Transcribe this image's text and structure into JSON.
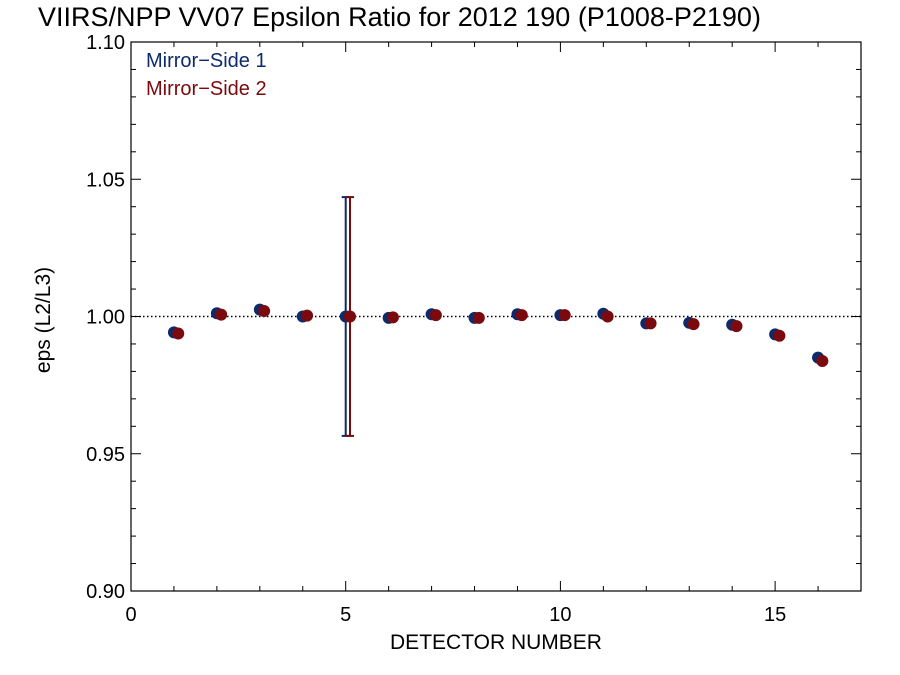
{
  "chart_data": {
    "type": "scatter",
    "title": "VIIRS/NPP VV07 Epsilon Ratio for 2012 190 (P1008-P2190)",
    "xlabel": "DETECTOR NUMBER",
    "ylabel": "eps (L2/L3)",
    "xlim": [
      0,
      17
    ],
    "ylim": [
      0.9,
      1.1
    ],
    "xticks": [
      0,
      5,
      10,
      15
    ],
    "xtick_labels": [
      "0",
      "5",
      "10",
      "15"
    ],
    "yticks": [
      0.9,
      0.95,
      1.0,
      1.05,
      1.1
    ],
    "ytick_labels": [
      "0.90",
      "0.95",
      "1.00",
      "1.05",
      "1.10"
    ],
    "reference_line": 1.0,
    "legend_position": "top-left",
    "series": [
      {
        "name": "Mirror−Side 1",
        "color": "#0d2b6b",
        "x_offset": 0,
        "x": [
          1,
          2,
          3,
          4,
          5,
          6,
          7,
          8,
          9,
          10,
          11,
          12,
          13,
          14,
          15,
          16
        ],
        "y": [
          0.9942,
          1.0012,
          1.0025,
          1.0,
          1.0,
          0.9995,
          1.0008,
          0.9995,
          1.0008,
          1.0005,
          1.001,
          0.9975,
          0.9977,
          0.997,
          0.9935,
          0.985
        ]
      },
      {
        "name": "Mirror−Side 2",
        "color": "#7a0a0e",
        "x_offset": 0.1,
        "x": [
          1,
          2,
          3,
          4,
          5,
          6,
          7,
          8,
          9,
          10,
          11,
          12,
          13,
          14,
          15,
          16
        ],
        "y": [
          0.9938,
          1.0007,
          1.002,
          1.0003,
          1.0,
          0.9997,
          1.0005,
          0.9995,
          1.0005,
          1.0005,
          1.0,
          0.9975,
          0.9972,
          0.9965,
          0.993,
          0.9838
        ]
      }
    ],
    "error_bars": [
      {
        "series": 0,
        "x": 5,
        "low": 0.9565,
        "high": 1.0435
      },
      {
        "series": 1,
        "x": 5,
        "low": 0.9565,
        "high": 1.0435
      }
    ]
  }
}
